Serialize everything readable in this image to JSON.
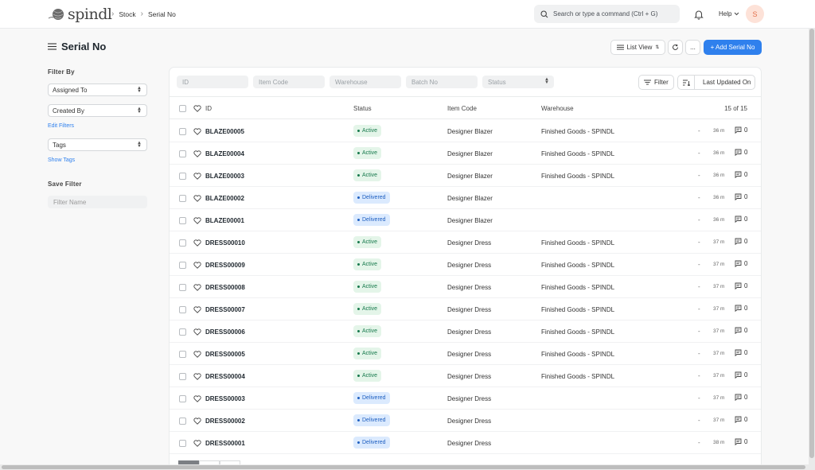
{
  "app": {
    "logo_text": "spindl"
  },
  "breadcrumbs": [
    "Stock",
    "Serial No"
  ],
  "navbar": {
    "search_placeholder": "Search or type a command (Ctrl + G)",
    "help_label": "Help",
    "avatar_initial": "S"
  },
  "page": {
    "title": "Serial No",
    "list_view_label": "List View",
    "more_label": "...",
    "add_button_label": "+ Add Serial No"
  },
  "sidebar": {
    "filter_by_label": "Filter By",
    "assigned_to": "Assigned To",
    "created_by": "Created By",
    "edit_filters": "Edit Filters",
    "tags": "Tags",
    "show_tags": "Show Tags",
    "save_filter_label": "Save Filter",
    "filter_name_placeholder": "Filter Name"
  },
  "filters": {
    "id_placeholder": "ID",
    "item_code_placeholder": "Item Code",
    "warehouse_placeholder": "Warehouse",
    "batch_no_placeholder": "Batch No",
    "status_placeholder": "Status",
    "filter_label": "Filter",
    "sort_label": "Last Updated On"
  },
  "table": {
    "columns": {
      "id": "ID",
      "status": "Status",
      "item_code": "Item Code",
      "warehouse": "Warehouse"
    },
    "count": "15 of 15",
    "rows": [
      {
        "id": "BLAZE00005",
        "status": "Active",
        "item": "Designer Blazer",
        "warehouse": "Finished Goods - SPINDL",
        "dash": "-",
        "time": "36 m",
        "comments": "0"
      },
      {
        "id": "BLAZE00004",
        "status": "Active",
        "item": "Designer Blazer",
        "warehouse": "Finished Goods - SPINDL",
        "dash": "-",
        "time": "36 m",
        "comments": "0"
      },
      {
        "id": "BLAZE00003",
        "status": "Active",
        "item": "Designer Blazer",
        "warehouse": "Finished Goods - SPINDL",
        "dash": "-",
        "time": "36 m",
        "comments": "0"
      },
      {
        "id": "BLAZE00002",
        "status": "Delivered",
        "item": "Designer Blazer",
        "warehouse": "",
        "dash": "-",
        "time": "36 m",
        "comments": "0"
      },
      {
        "id": "BLAZE00001",
        "status": "Delivered",
        "item": "Designer Blazer",
        "warehouse": "",
        "dash": "-",
        "time": "36 m",
        "comments": "0"
      },
      {
        "id": "DRESS00010",
        "status": "Active",
        "item": "Designer Dress",
        "warehouse": "Finished Goods - SPINDL",
        "dash": "-",
        "time": "37 m",
        "comments": "0"
      },
      {
        "id": "DRESS00009",
        "status": "Active",
        "item": "Designer Dress",
        "warehouse": "Finished Goods - SPINDL",
        "dash": "-",
        "time": "37 m",
        "comments": "0"
      },
      {
        "id": "DRESS00008",
        "status": "Active",
        "item": "Designer Dress",
        "warehouse": "Finished Goods - SPINDL",
        "dash": "-",
        "time": "37 m",
        "comments": "0"
      },
      {
        "id": "DRESS00007",
        "status": "Active",
        "item": "Designer Dress",
        "warehouse": "Finished Goods - SPINDL",
        "dash": "-",
        "time": "37 m",
        "comments": "0"
      },
      {
        "id": "DRESS00006",
        "status": "Active",
        "item": "Designer Dress",
        "warehouse": "Finished Goods - SPINDL",
        "dash": "-",
        "time": "37 m",
        "comments": "0"
      },
      {
        "id": "DRESS00005",
        "status": "Active",
        "item": "Designer Dress",
        "warehouse": "Finished Goods - SPINDL",
        "dash": "-",
        "time": "37 m",
        "comments": "0"
      },
      {
        "id": "DRESS00004",
        "status": "Active",
        "item": "Designer Dress",
        "warehouse": "Finished Goods - SPINDL",
        "dash": "-",
        "time": "37 m",
        "comments": "0"
      },
      {
        "id": "DRESS00003",
        "status": "Delivered",
        "item": "Designer Dress",
        "warehouse": "",
        "dash": "-",
        "time": "37 m",
        "comments": "0"
      },
      {
        "id": "DRESS00002",
        "status": "Delivered",
        "item": "Designer Dress",
        "warehouse": "",
        "dash": "-",
        "time": "37 m",
        "comments": "0"
      },
      {
        "id": "DRESS00001",
        "status": "Delivered",
        "item": "Designer Dress",
        "warehouse": "",
        "dash": "-",
        "time": "38 m",
        "comments": "0"
      }
    ]
  },
  "colors": {
    "primary": "#2f80ed",
    "active_bg": "#e4f5e9",
    "active_fg": "#16794c",
    "delivered_bg": "#dbeafe",
    "delivered_fg": "#1e5fc0"
  },
  "icons": [
    "yarn-logo-icon",
    "chevron-right-icon",
    "search-icon",
    "bell-icon",
    "chevron-down-icon",
    "hamburger-icon",
    "list-icon",
    "refresh-icon",
    "filter-icon",
    "sort-icon",
    "heart-icon",
    "comment-icon"
  ]
}
